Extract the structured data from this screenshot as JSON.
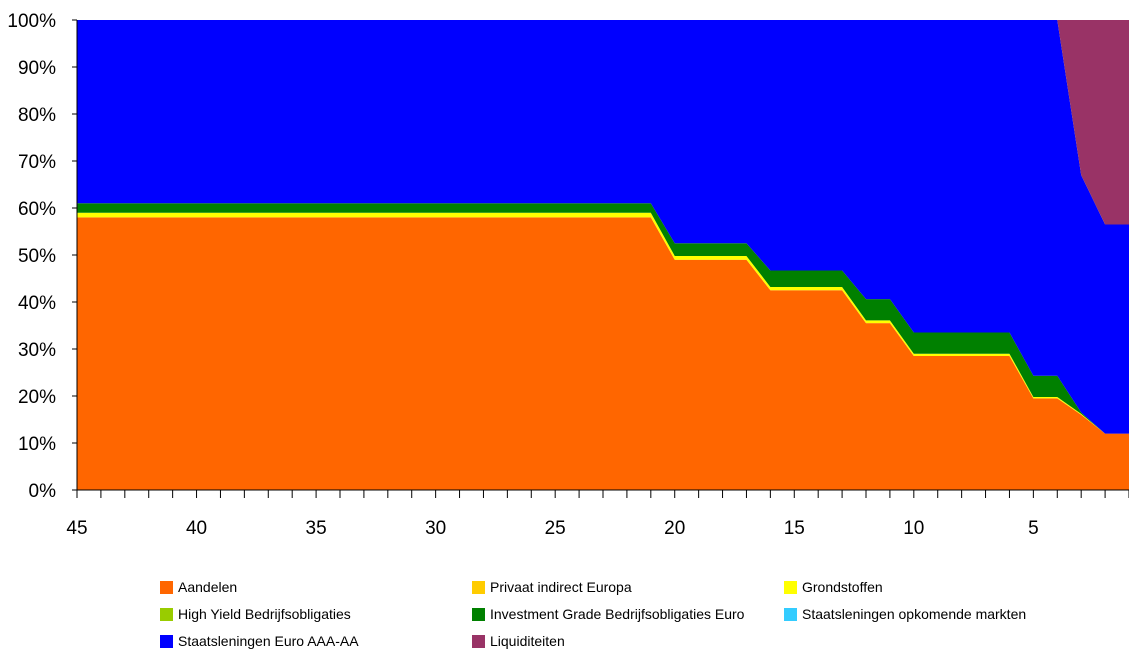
{
  "chart_data": {
    "type": "area",
    "stacked": true,
    "x": [
      45,
      44,
      43,
      42,
      41,
      40,
      39,
      38,
      37,
      36,
      35,
      34,
      33,
      32,
      31,
      30,
      29,
      28,
      27,
      26,
      25,
      24,
      23,
      22,
      21,
      20,
      19,
      18,
      17,
      16,
      15,
      14,
      13,
      12,
      11,
      10,
      9,
      8,
      7,
      6,
      5,
      4,
      3,
      2,
      1
    ],
    "xlim": [
      45,
      1
    ],
    "xticks": [
      45,
      40,
      35,
      30,
      25,
      20,
      15,
      10,
      5
    ],
    "ylim": [
      0,
      100
    ],
    "yticks": [
      "0%",
      "10%",
      "20%",
      "30%",
      "40%",
      "50%",
      "60%",
      "70%",
      "80%",
      "90%",
      "100%"
    ],
    "grid": false,
    "legend_position": "bottom",
    "series": [
      {
        "name": "Aandelen",
        "color": "#FF6600",
        "values": [
          58,
          58,
          58,
          58,
          58,
          58,
          58,
          58,
          58,
          58,
          58,
          58,
          58,
          58,
          58,
          58,
          58,
          58,
          58,
          58,
          58,
          58,
          58,
          58,
          58,
          49,
          49,
          49,
          49,
          42.5,
          42.5,
          42.5,
          42.5,
          35.5,
          35.5,
          28.5,
          28.5,
          28.5,
          28.5,
          28.5,
          19.5,
          19.5,
          16,
          12,
          12
        ]
      },
      {
        "name": "Privaat indirect Europa",
        "color": "#FFCC00",
        "values": [
          0,
          0,
          0,
          0,
          0,
          0,
          0,
          0,
          0,
          0,
          0,
          0,
          0,
          0,
          0,
          0,
          0,
          0,
          0,
          0,
          0,
          0,
          0,
          0,
          0,
          0,
          0,
          0,
          0,
          0,
          0,
          0,
          0,
          0,
          0,
          0,
          0,
          0,
          0,
          0,
          0,
          0,
          0,
          0,
          0
        ]
      },
      {
        "name": "Grondstoffen",
        "color": "#FFFF00",
        "values": [
          1,
          1,
          1,
          1,
          1,
          1,
          1,
          1,
          1,
          1,
          1,
          1,
          1,
          1,
          1,
          1,
          1,
          1,
          1,
          1,
          1,
          1,
          1,
          1,
          1,
          0.8,
          0.8,
          0.8,
          0.8,
          0.7,
          0.7,
          0.7,
          0.7,
          0.6,
          0.6,
          0.5,
          0.5,
          0.5,
          0.5,
          0.5,
          0.3,
          0.3,
          0.2,
          0,
          0
        ]
      },
      {
        "name": "High Yield Bedrijfsobligaties",
        "color": "#99CC00",
        "values": [
          0,
          0,
          0,
          0,
          0,
          0,
          0,
          0,
          0,
          0,
          0,
          0,
          0,
          0,
          0,
          0,
          0,
          0,
          0,
          0,
          0,
          0,
          0,
          0,
          0,
          0,
          0,
          0,
          0,
          0,
          0,
          0,
          0,
          0,
          0,
          0,
          0,
          0,
          0,
          0,
          0,
          0,
          0,
          0,
          0
        ]
      },
      {
        "name": "Investment Grade Bedrijfsobligaties Euro",
        "color": "#008000",
        "values": [
          2,
          2,
          2,
          2,
          2,
          2,
          2,
          2,
          2,
          2,
          2,
          2,
          2,
          2,
          2,
          2,
          2,
          2,
          2,
          2,
          2,
          2,
          2,
          2,
          2,
          2.7,
          2.7,
          2.7,
          2.7,
          3.5,
          3.5,
          3.5,
          3.5,
          4.5,
          4.5,
          4.5,
          4.5,
          4.5,
          4.5,
          4.5,
          4.5,
          4.5,
          0.3,
          0,
          0
        ]
      },
      {
        "name": "Staatsleningen opkomende markten",
        "color": "#33CCFF",
        "values": [
          0,
          0,
          0,
          0,
          0,
          0,
          0,
          0,
          0,
          0,
          0,
          0,
          0,
          0,
          0,
          0,
          0,
          0,
          0,
          0,
          0,
          0,
          0,
          0,
          0,
          0,
          0,
          0,
          0,
          0,
          0,
          0,
          0,
          0,
          0,
          0,
          0,
          0,
          0,
          0,
          0,
          0,
          0,
          0,
          0
        ]
      },
      {
        "name": "Staatsleningen Euro AAA-AA",
        "color": "#0000FF",
        "values": [
          39,
          39,
          39,
          39,
          39,
          39,
          39,
          39,
          39,
          39,
          39,
          39,
          39,
          39,
          39,
          39,
          39,
          39,
          39,
          39,
          39,
          39,
          39,
          39,
          39,
          47.5,
          47.5,
          47.5,
          47.5,
          53.3,
          53.3,
          53.3,
          53.3,
          59.4,
          59.4,
          66.5,
          66.5,
          66.5,
          66.5,
          66.5,
          75.7,
          75.7,
          50.5,
          44.5,
          44.5
        ]
      },
      {
        "name": "Liquiditeiten",
        "color": "#993366",
        "values": [
          0,
          0,
          0,
          0,
          0,
          0,
          0,
          0,
          0,
          0,
          0,
          0,
          0,
          0,
          0,
          0,
          0,
          0,
          0,
          0,
          0,
          0,
          0,
          0,
          0,
          0,
          0,
          0,
          0,
          0,
          0,
          0,
          0,
          0,
          0,
          0,
          0,
          0,
          0,
          0,
          0,
          0,
          33,
          43.5,
          43.5
        ]
      }
    ],
    "title": "",
    "xlabel": "",
    "ylabel": ""
  }
}
